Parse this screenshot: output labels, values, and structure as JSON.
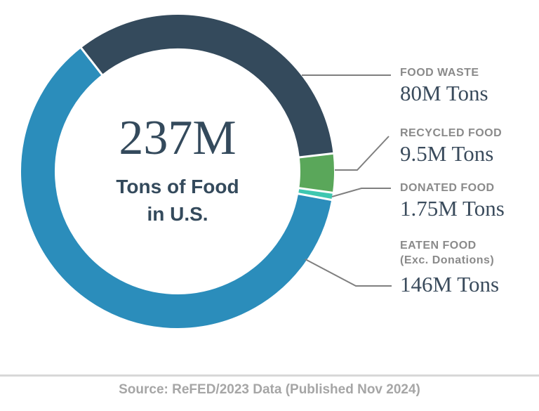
{
  "chart_data": {
    "type": "pie",
    "donut": true,
    "title": "Tons of Food in U.S.",
    "center": {
      "value": "237M",
      "line1": "Tons of Food",
      "line2": "in U.S."
    },
    "categories": [
      "FOOD WASTE",
      "RECYCLED FOOD",
      "DONATED FOOD",
      "EATEN FOOD (Exc. Donations)"
    ],
    "values": [
      80,
      9.5,
      1.75,
      146
    ],
    "value_labels": [
      "80M Tons",
      "9.5M Tons",
      "1.75M Tons",
      "146M Tons"
    ],
    "unit": "M Tons",
    "total": 237.25,
    "colors": [
      "#344A5C",
      "#5AA75A",
      "#3FC7B0",
      "#2B8DBB"
    ],
    "legend_position": "right",
    "grid": false
  },
  "annotations": [
    {
      "title": "FOOD WASTE",
      "value": "80M Tons"
    },
    {
      "title": "RECYCLED FOOD",
      "value": "9.5M Tons"
    },
    {
      "title": "DONATED FOOD",
      "value": "1.75M Tons"
    },
    {
      "title": "EATEN FOOD",
      "subtitle": "(Exc. Donations)",
      "value": "146M Tons"
    }
  ],
  "footer": {
    "source": "Source: ReFED/2023 Data (Published Nov 2024)"
  }
}
